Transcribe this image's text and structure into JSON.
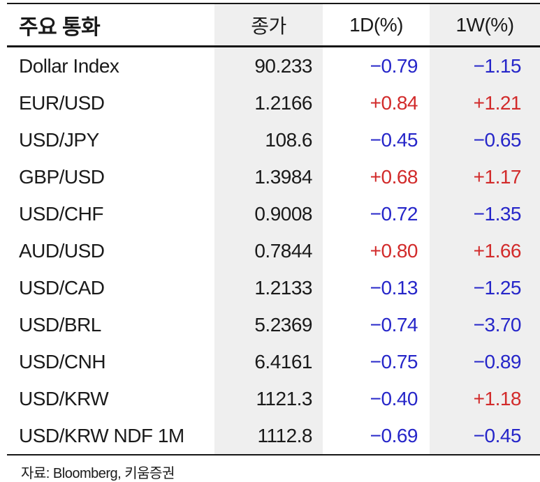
{
  "table": {
    "columns": [
      {
        "key": "name",
        "label": "주요 통화"
      },
      {
        "key": "close",
        "label": "종가"
      },
      {
        "key": "d1",
        "label": "1D(%)"
      },
      {
        "key": "w1",
        "label": "1W(%)"
      }
    ],
    "rows": [
      {
        "name": "Dollar Index",
        "close": "90.233",
        "d1": "−0.79",
        "d1_dir": "down",
        "w1": "−1.15",
        "w1_dir": "down"
      },
      {
        "name": "EUR/USD",
        "close": "1.2166",
        "d1": "+0.84",
        "d1_dir": "up",
        "w1": "+1.21",
        "w1_dir": "up"
      },
      {
        "name": "USD/JPY",
        "close": "108.6",
        "d1": "−0.45",
        "d1_dir": "down",
        "w1": "−0.65",
        "w1_dir": "down"
      },
      {
        "name": "GBP/USD",
        "close": "1.3984",
        "d1": "+0.68",
        "d1_dir": "up",
        "w1": "+1.17",
        "w1_dir": "up"
      },
      {
        "name": "USD/CHF",
        "close": "0.9008",
        "d1": "−0.72",
        "d1_dir": "down",
        "w1": "−1.35",
        "w1_dir": "down"
      },
      {
        "name": "AUD/USD",
        "close": "0.7844",
        "d1": "+0.80",
        "d1_dir": "up",
        "w1": "+1.66",
        "w1_dir": "up"
      },
      {
        "name": "USD/CAD",
        "close": "1.2133",
        "d1": "−0.13",
        "d1_dir": "down",
        "w1": "−1.25",
        "w1_dir": "down"
      },
      {
        "name": "USD/BRL",
        "close": "5.2369",
        "d1": "−0.74",
        "d1_dir": "down",
        "w1": "−3.70",
        "w1_dir": "down"
      },
      {
        "name": "USD/CNH",
        "close": "6.4161",
        "d1": "−0.75",
        "d1_dir": "down",
        "w1": "−0.89",
        "w1_dir": "down"
      },
      {
        "name": "USD/KRW",
        "close": "1121.3",
        "d1": "−0.40",
        "d1_dir": "down",
        "w1": "+1.18",
        "w1_dir": "up"
      },
      {
        "name": "USD/KRW NDF 1M",
        "close": "1112.8",
        "d1": "−0.69",
        "d1_dir": "down",
        "w1": "−0.45",
        "w1_dir": "down"
      }
    ]
  },
  "footer": {
    "source": "자료: Bloomberg,  키움증권"
  },
  "colors": {
    "positive": "#d22b2b",
    "negative": "#2626c9",
    "shaded_column": "#efefef",
    "rule": "#161616",
    "text": "#1a1a1a"
  }
}
